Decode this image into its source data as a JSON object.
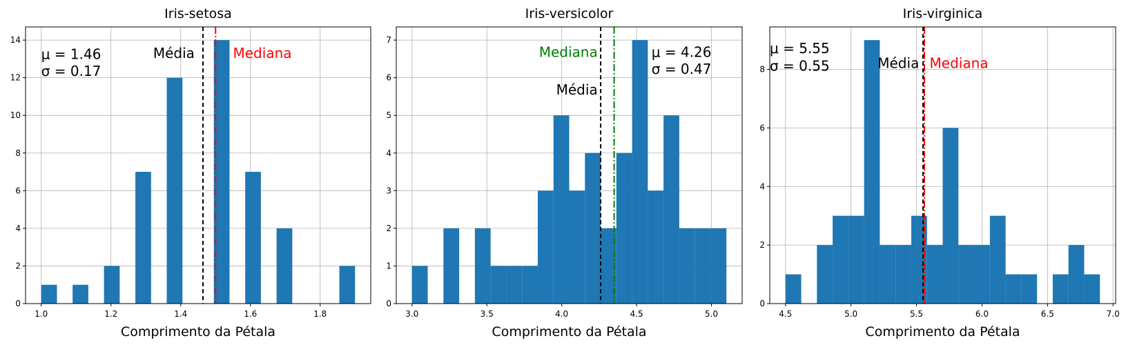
{
  "chart_data": [
    {
      "type": "bar",
      "title": "Iris-setosa",
      "xlabel": "Comprimento da Pétala",
      "ylabel": "",
      "xlim": [
        0.955,
        1.945
      ],
      "ylim": [
        0,
        14.7
      ],
      "xticks": [
        1.0,
        1.2,
        1.4,
        1.6,
        1.8
      ],
      "xtick_labels": [
        "1.0",
        "1.2",
        "1.4",
        "1.6",
        "1.8"
      ],
      "yticks": [
        0,
        2,
        4,
        6,
        8,
        10,
        12,
        14
      ],
      "ytick_labels": [
        "0",
        "2",
        "4",
        "6",
        "8",
        "10",
        "12",
        "14"
      ],
      "grid": true,
      "bins": [
        {
          "x0": 1.0,
          "x1": 1.045,
          "count": 1
        },
        {
          "x0": 1.09,
          "x1": 1.135,
          "count": 1
        },
        {
          "x0": 1.18,
          "x1": 1.225,
          "count": 2
        },
        {
          "x0": 1.27,
          "x1": 1.315,
          "count": 7
        },
        {
          "x0": 1.36,
          "x1": 1.405,
          "count": 12
        },
        {
          "x0": 1.495,
          "x1": 1.54,
          "count": 14
        },
        {
          "x0": 1.585,
          "x1": 1.63,
          "count": 7
        },
        {
          "x0": 1.675,
          "x1": 1.72,
          "count": 4
        },
        {
          "x0": 1.855,
          "x1": 1.9,
          "count": 2
        }
      ],
      "lines": [
        {
          "name": "media",
          "x": 1.464,
          "color": "#000000",
          "dash": "dashed"
        },
        {
          "name": "mediana",
          "x": 1.5,
          "color": "#ff0000",
          "dash": "dashdot"
        }
      ],
      "annotations": [
        {
          "text": "μ = 1.46",
          "x": 1.0,
          "y": 13.0,
          "color": "#000000",
          "anchor": "start"
        },
        {
          "text": "σ = 0.17",
          "x": 1.0,
          "y": 12.1,
          "color": "#000000",
          "anchor": "start"
        },
        {
          "text": "Média",
          "x": 1.44,
          "y": 13.05,
          "color": "#000000",
          "anchor": "end"
        },
        {
          "text": "Mediana",
          "x": 1.55,
          "y": 13.05,
          "color": "#ff0000",
          "anchor": "start"
        }
      ]
    },
    {
      "type": "bar",
      "title": "Iris-versicolor",
      "xlabel": "Comprimento da Pétala",
      "ylabel": "",
      "xlim": [
        2.895,
        5.205
      ],
      "ylim": [
        0,
        7.35
      ],
      "xticks": [
        3.0,
        3.5,
        4.0,
        4.5,
        5.0
      ],
      "xtick_labels": [
        "3.0",
        "3.5",
        "4.0",
        "4.5",
        "5.0"
      ],
      "yticks": [
        0,
        1,
        2,
        3,
        4,
        5,
        6,
        7
      ],
      "ytick_labels": [
        "0",
        "1",
        "2",
        "3",
        "4",
        "5",
        "6",
        "7"
      ],
      "grid": true,
      "bins": [
        {
          "x0": 3.0,
          "x1": 3.105,
          "count": 1
        },
        {
          "x0": 3.21,
          "x1": 3.315,
          "count": 2
        },
        {
          "x0": 3.42,
          "x1": 3.525,
          "count": 2
        },
        {
          "x0": 3.525,
          "x1": 3.63,
          "count": 1
        },
        {
          "x0": 3.63,
          "x1": 3.735,
          "count": 1
        },
        {
          "x0": 3.735,
          "x1": 3.84,
          "count": 1
        },
        {
          "x0": 3.84,
          "x1": 3.945,
          "count": 3
        },
        {
          "x0": 3.945,
          "x1": 4.05,
          "count": 5
        },
        {
          "x0": 4.05,
          "x1": 4.155,
          "count": 3
        },
        {
          "x0": 4.155,
          "x1": 4.26,
          "count": 4
        },
        {
          "x0": 4.26,
          "x1": 4.365,
          "count": 2
        },
        {
          "x0": 4.365,
          "x1": 4.47,
          "count": 4
        },
        {
          "x0": 4.47,
          "x1": 4.575,
          "count": 7
        },
        {
          "x0": 4.575,
          "x1": 4.68,
          "count": 3
        },
        {
          "x0": 4.68,
          "x1": 4.785,
          "count": 5
        },
        {
          "x0": 4.785,
          "x1": 4.89,
          "count": 2
        },
        {
          "x0": 4.89,
          "x1": 4.995,
          "count": 2
        },
        {
          "x0": 4.995,
          "x1": 5.1,
          "count": 2
        }
      ],
      "lines": [
        {
          "name": "media",
          "x": 4.26,
          "color": "#000000",
          "dash": "dashed"
        },
        {
          "name": "mediana",
          "x": 4.35,
          "color": "#008000",
          "dash": "dashdot"
        }
      ],
      "annotations": [
        {
          "text": "Mediana",
          "x": 4.24,
          "y": 6.55,
          "color": "#008000",
          "anchor": "end"
        },
        {
          "text": "Média",
          "x": 4.24,
          "y": 5.55,
          "color": "#000000",
          "anchor": "end"
        },
        {
          "text": "μ = 4.26",
          "x": 4.6,
          "y": 6.55,
          "color": "#000000",
          "anchor": "start"
        },
        {
          "text": "σ = 0.47",
          "x": 4.6,
          "y": 6.1,
          "color": "#000000",
          "anchor": "start"
        }
      ]
    },
    {
      "type": "bar",
      "title": "Iris-virginica",
      "xlabel": "Comprimento da Pétala",
      "ylabel": "",
      "xlim": [
        4.38,
        7.02
      ],
      "ylim": [
        0,
        9.45
      ],
      "xticks": [
        4.5,
        5.0,
        5.5,
        6.0,
        6.5,
        7.0
      ],
      "xtick_labels": [
        "4.5",
        "5.0",
        "5.5",
        "6.0",
        "6.5",
        "7.0"
      ],
      "yticks": [
        0,
        2,
        4,
        6,
        8
      ],
      "ytick_labels": [
        "0",
        "2",
        "4",
        "6",
        "8"
      ],
      "grid": true,
      "bins": [
        {
          "x0": 4.5,
          "x1": 4.62,
          "count": 1
        },
        {
          "x0": 4.74,
          "x1": 4.86,
          "count": 2
        },
        {
          "x0": 4.86,
          "x1": 4.98,
          "count": 3
        },
        {
          "x0": 4.98,
          "x1": 5.1,
          "count": 3
        },
        {
          "x0": 5.1,
          "x1": 5.22,
          "count": 9
        },
        {
          "x0": 5.22,
          "x1": 5.34,
          "count": 2
        },
        {
          "x0": 5.34,
          "x1": 5.46,
          "count": 2
        },
        {
          "x0": 5.46,
          "x1": 5.58,
          "count": 3
        },
        {
          "x0": 5.58,
          "x1": 5.7,
          "count": 2
        },
        {
          "x0": 5.7,
          "x1": 5.82,
          "count": 6
        },
        {
          "x0": 5.82,
          "x1": 5.94,
          "count": 2
        },
        {
          "x0": 5.94,
          "x1": 6.06,
          "count": 2
        },
        {
          "x0": 6.06,
          "x1": 6.18,
          "count": 3
        },
        {
          "x0": 6.18,
          "x1": 6.3,
          "count": 1
        },
        {
          "x0": 6.3,
          "x1": 6.42,
          "count": 1
        },
        {
          "x0": 6.54,
          "x1": 6.66,
          "count": 1
        },
        {
          "x0": 6.66,
          "x1": 6.78,
          "count": 2
        },
        {
          "x0": 6.78,
          "x1": 6.9,
          "count": 1
        }
      ],
      "lines": [
        {
          "name": "media",
          "x": 5.55,
          "color": "#000000",
          "dash": "dashed"
        },
        {
          "name": "mediana",
          "x": 5.56,
          "color": "#ff0000",
          "dash": "dashdot"
        }
      ],
      "annotations": [
        {
          "text": "μ = 5.55",
          "x": 4.38,
          "y": 8.55,
          "color": "#000000",
          "anchor": "start"
        },
        {
          "text": "σ = 0.55",
          "x": 4.38,
          "y": 7.95,
          "color": "#000000",
          "anchor": "start"
        },
        {
          "text": "Média",
          "x": 5.52,
          "y": 8.05,
          "color": "#000000",
          "anchor": "end"
        },
        {
          "text": "Mediana",
          "x": 5.6,
          "y": 8.05,
          "color": "#ff0000",
          "anchor": "start"
        }
      ]
    }
  ],
  "style": {
    "bar_color": "#1f77b4",
    "grid_color": "#b0b0b0"
  }
}
